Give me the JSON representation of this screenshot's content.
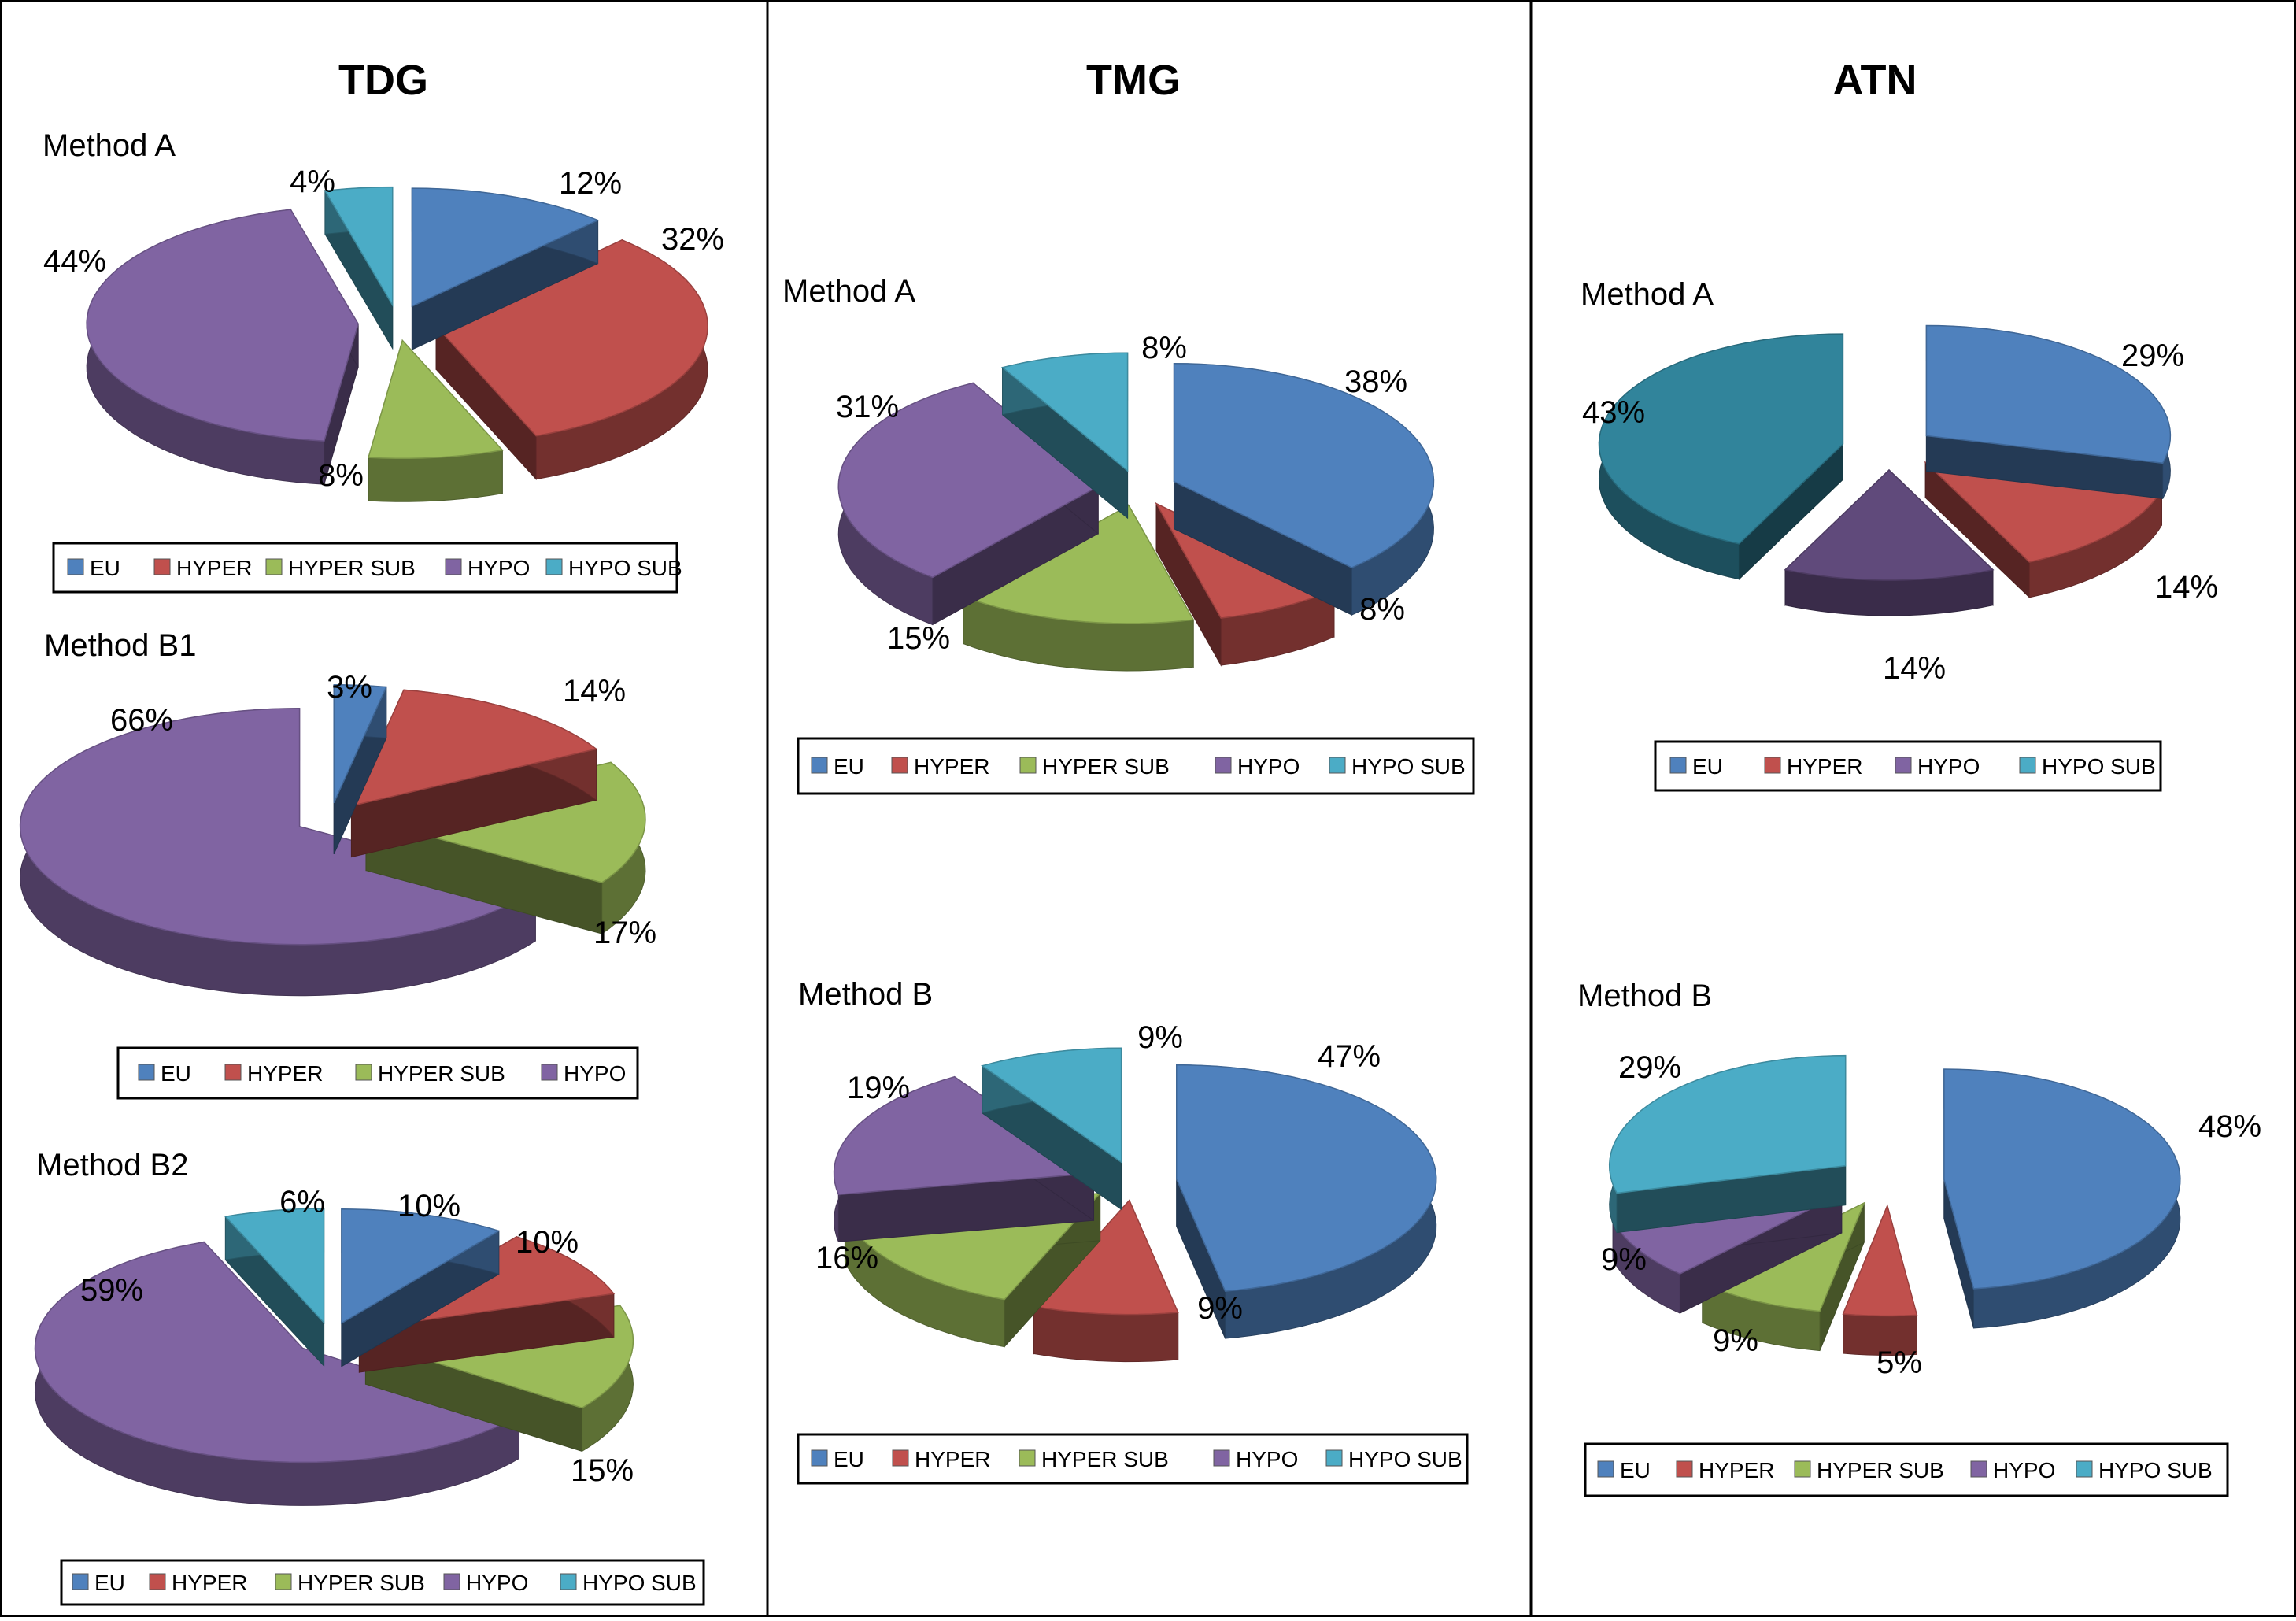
{
  "figure": {
    "columns": [
      {
        "title": "TDG"
      },
      {
        "title": "TMG"
      },
      {
        "title": "ATN"
      }
    ]
  },
  "legend_colors": {
    "EU": "#4f81bd",
    "HYPER": "#c0504d",
    "HYPER SUB": "#9bbb59",
    "HYPO": "#8064a2",
    "HYPO SUB": "#4bacc6"
  },
  "chart_data": [
    {
      "type": "pie",
      "variant": "3d-exploded",
      "column": "TDG",
      "title": "Method A",
      "slices": [
        {
          "name": "EU",
          "value": 12,
          "label": "12%",
          "color": "#4f81bd"
        },
        {
          "name": "HYPER",
          "value": 32,
          "label": "32%",
          "color": "#c0504d"
        },
        {
          "name": "HYPER SUB",
          "value": 8,
          "label": "8%",
          "color": "#9bbb59"
        },
        {
          "name": "HYPO",
          "value": 44,
          "label": "44%",
          "color": "#8064a2"
        },
        {
          "name": "HYPO SUB",
          "value": 4,
          "label": "4%",
          "color": "#4bacc6"
        }
      ],
      "legend": [
        "EU",
        "HYPER",
        "HYPER SUB",
        "HYPO",
        "HYPO SUB"
      ]
    },
    {
      "type": "pie",
      "variant": "3d-exploded",
      "column": "TDG",
      "title": "Method B1",
      "slices": [
        {
          "name": "EU",
          "value": 3,
          "label": "3%",
          "color": "#4f81bd"
        },
        {
          "name": "HYPER",
          "value": 14,
          "label": "14%",
          "color": "#c0504d"
        },
        {
          "name": "HYPER SUB",
          "value": 17,
          "label": "17%",
          "color": "#9bbb59"
        },
        {
          "name": "HYPO",
          "value": 66,
          "label": "66%",
          "color": "#8064a2"
        }
      ],
      "legend": [
        "EU",
        "HYPER",
        "HYPER SUB",
        "HYPO"
      ]
    },
    {
      "type": "pie",
      "variant": "3d-exploded",
      "column": "TDG",
      "title": "Method B2",
      "slices": [
        {
          "name": "EU",
          "value": 10,
          "label": "10%",
          "color": "#4f81bd"
        },
        {
          "name": "HYPER",
          "value": 10,
          "label": "10%",
          "color": "#c0504d"
        },
        {
          "name": "HYPER SUB",
          "value": 15,
          "label": "15%",
          "color": "#9bbb59"
        },
        {
          "name": "HYPO",
          "value": 59,
          "label": "59%",
          "color": "#8064a2"
        },
        {
          "name": "HYPO SUB",
          "value": 6,
          "label": "6%",
          "color": "#4bacc6"
        }
      ],
      "legend": [
        "EU",
        "HYPER",
        "HYPER SUB",
        "HYPO",
        "HYPO SUB"
      ]
    },
    {
      "type": "pie",
      "variant": "3d-exploded",
      "column": "TMG",
      "title": "Method A",
      "slices": [
        {
          "name": "EU",
          "value": 38,
          "label": "38%",
          "color": "#4f81bd"
        },
        {
          "name": "HYPER",
          "value": 8,
          "label": "8%",
          "color": "#c0504d"
        },
        {
          "name": "HYPER SUB",
          "value": 15,
          "label": "15%",
          "color": "#9bbb59"
        },
        {
          "name": "HYPO",
          "value": 31,
          "label": "31%",
          "color": "#8064a2"
        },
        {
          "name": "HYPO SUB",
          "value": 8,
          "label": "8%",
          "color": "#4bacc6"
        }
      ],
      "legend": [
        "EU",
        "HYPER",
        "HYPER SUB",
        "HYPO",
        "HYPO SUB"
      ]
    },
    {
      "type": "pie",
      "variant": "3d-exploded",
      "column": "TMG",
      "title": "Method B",
      "slices": [
        {
          "name": "EU",
          "value": 47,
          "label": "47%",
          "color": "#4f81bd"
        },
        {
          "name": "HYPER",
          "value": 9,
          "label": "9%",
          "color": "#c0504d"
        },
        {
          "name": "HYPER SUB",
          "value": 16,
          "label": "16%",
          "color": "#9bbb59"
        },
        {
          "name": "HYPO",
          "value": 19,
          "label": "19%",
          "color": "#8064a2"
        },
        {
          "name": "HYPO SUB",
          "value": 9,
          "label": "9%",
          "color": "#4bacc6"
        }
      ],
      "legend": [
        "EU",
        "HYPER",
        "HYPER SUB",
        "HYPO",
        "HYPO SUB"
      ]
    },
    {
      "type": "pie",
      "variant": "3d-exploded",
      "column": "ATN",
      "title": "Method A",
      "slices": [
        {
          "name": "EU",
          "value": 29,
          "label": "29%",
          "color": "#4f81bd"
        },
        {
          "name": "HYPER",
          "value": 14,
          "label": "14%",
          "color": "#c0504d"
        },
        {
          "name": "HYPO",
          "value": 14,
          "label": "14%",
          "color": "#604a7b"
        },
        {
          "name": "HYPO SUB",
          "value": 43,
          "label": "43%",
          "color": "#31849b"
        }
      ],
      "legend": [
        "EU",
        "HYPER",
        "HYPO",
        "HYPO SUB"
      ]
    },
    {
      "type": "pie",
      "variant": "3d-exploded",
      "column": "ATN",
      "title": "Method B",
      "slices": [
        {
          "name": "EU",
          "value": 48,
          "label": "48%",
          "color": "#4f81bd"
        },
        {
          "name": "HYPER",
          "value": 5,
          "label": "5%",
          "color": "#c0504d"
        },
        {
          "name": "HYPER SUB",
          "value": 9,
          "label": "9%",
          "color": "#9bbb59"
        },
        {
          "name": "HYPO",
          "value": 9,
          "label": "9%",
          "color": "#8064a2"
        },
        {
          "name": "HYPO SUB",
          "value": 29,
          "label": "29%",
          "color": "#4bacc6"
        }
      ],
      "legend": [
        "EU",
        "HYPER",
        "HYPER SUB",
        "HYPO",
        "HYPO SUB"
      ]
    }
  ]
}
